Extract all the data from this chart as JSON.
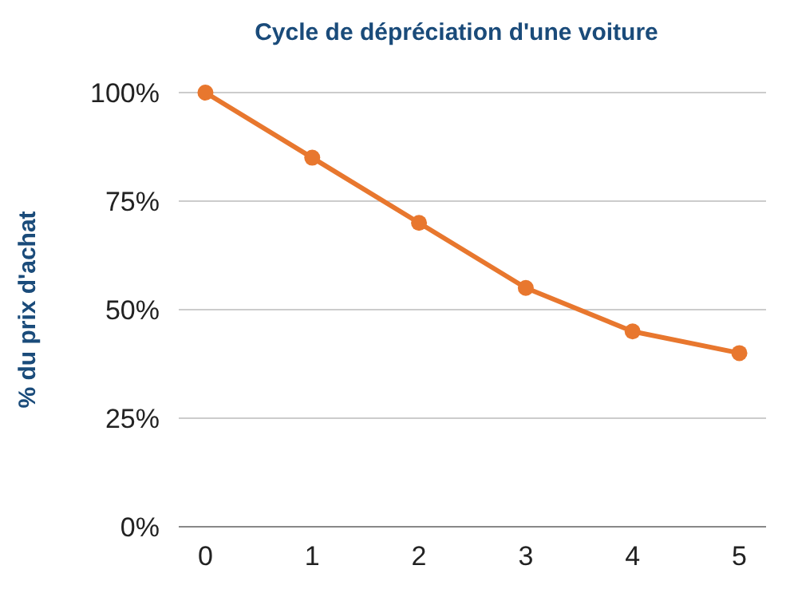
{
  "chart_data": {
    "type": "line",
    "title": "Cycle de dépréciation d'une voiture",
    "ylabel": "% du prix d'achat",
    "categories": [
      "0",
      "1",
      "2",
      "3",
      "4",
      "5"
    ],
    "series": [
      {
        "color": "#e8772e",
        "values": [
          100,
          85,
          70,
          55,
          45,
          40
        ]
      }
    ],
    "ylim": [
      0,
      100
    ],
    "yticks": [
      {
        "value": 0,
        "label": "0%"
      },
      {
        "value": 25,
        "label": "25%"
      },
      {
        "value": 50,
        "label": "50%"
      },
      {
        "value": 75,
        "label": "75%"
      },
      {
        "value": 100,
        "label": "100%"
      }
    ],
    "grid": "y",
    "marker": "circle",
    "line_style": "solid"
  }
}
